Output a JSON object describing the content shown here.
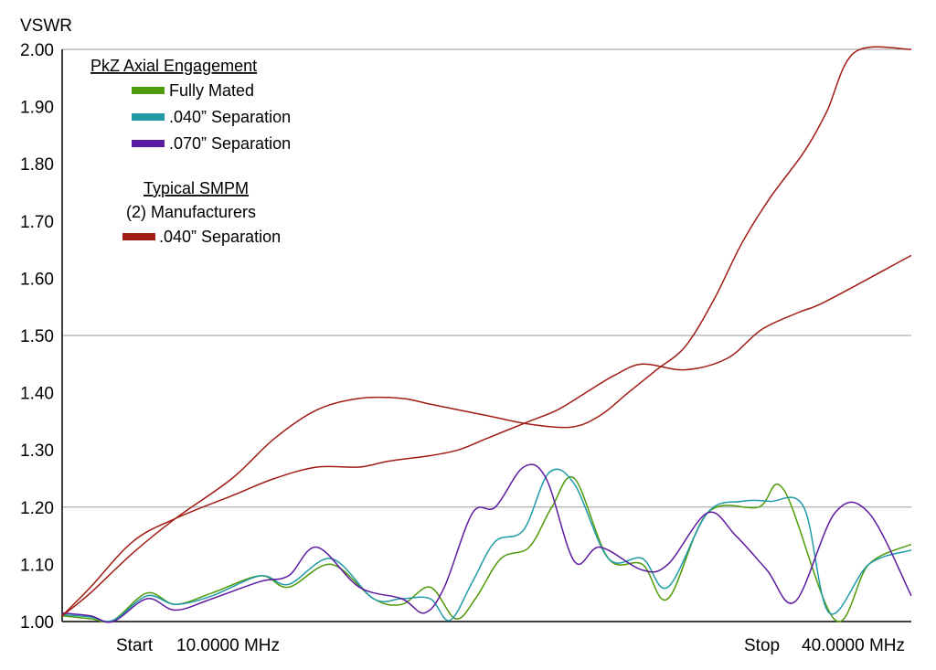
{
  "chart_data": {
    "type": "line",
    "y_axis_title": "VSWR",
    "y_ticks": [
      "2.00",
      "1.90",
      "1.80",
      "1.70",
      "1.60",
      "1.50",
      "1.40",
      "1.30",
      "1.20",
      "1.10",
      "1.00"
    ],
    "ylim": [
      1.0,
      2.0
    ],
    "xlim": [
      10,
      40
    ],
    "x_unit": "MHz",
    "grid_lines_at": [
      1.2,
      1.5,
      2.0
    ],
    "start_label": "Start",
    "start_value": "10.0000 MHz",
    "stop_label": "Stop",
    "stop_value": "40.0000 MHz",
    "legend": {
      "group1_title": "PkZ Axial Engagement",
      "group2_title": "Typical SMPM",
      "group2_subtitle": "(2) Manufacturers"
    },
    "series": [
      {
        "name": "Fully Mated",
        "color": "#4e9a06",
        "x": [
          10.0,
          11.0,
          11.8,
          13.0,
          14.0,
          15.3,
          17.0,
          18.0,
          19.5,
          21.0,
          22.0,
          23.0,
          23.9,
          24.6,
          25.5,
          26.5,
          27.3,
          28.1,
          29.3,
          30.5,
          31.4,
          32.8,
          34.6,
          35.5,
          37.3,
          38.5,
          40.0
        ],
        "y": [
          1.01,
          1.005,
          1.002,
          1.05,
          1.03,
          1.05,
          1.08,
          1.06,
          1.1,
          1.04,
          1.03,
          1.06,
          1.005,
          1.04,
          1.11,
          1.13,
          1.2,
          1.25,
          1.11,
          1.1,
          1.04,
          1.19,
          1.2,
          1.23,
          1.003,
          1.1,
          1.135
        ]
      },
      {
        "name": ".040” Separation",
        "color": "#1f9aa6",
        "x": [
          10.0,
          11.0,
          11.8,
          13.0,
          14.0,
          15.3,
          17.0,
          18.0,
          19.5,
          21.0,
          22.0,
          23.0,
          23.7,
          24.5,
          25.3,
          26.3,
          27.2,
          28.1,
          29.3,
          30.5,
          31.4,
          32.8,
          34.0,
          35.0,
          36.2,
          37.1,
          38.5,
          40.0
        ],
        "y": [
          1.012,
          1.008,
          1.002,
          1.045,
          1.03,
          1.045,
          1.08,
          1.065,
          1.11,
          1.04,
          1.04,
          1.04,
          1.002,
          1.07,
          1.14,
          1.16,
          1.26,
          1.24,
          1.11,
          1.11,
          1.06,
          1.19,
          1.21,
          1.21,
          1.2,
          1.015,
          1.1,
          1.125
        ]
      },
      {
        "name": ".070” Separation",
        "color": "#5b1aa0",
        "x": [
          10.0,
          11.0,
          11.8,
          13.0,
          14.0,
          15.3,
          17.0,
          18.0,
          19.0,
          20.5,
          22.0,
          22.8,
          23.5,
          24.5,
          25.3,
          26.3,
          27.1,
          28.1,
          29.0,
          30.5,
          31.4,
          32.8,
          33.8,
          34.9,
          35.9,
          37.3,
          38.5,
          40.0
        ],
        "y": [
          1.015,
          1.01,
          1.0,
          1.04,
          1.02,
          1.04,
          1.07,
          1.08,
          1.13,
          1.06,
          1.04,
          1.015,
          1.06,
          1.19,
          1.2,
          1.27,
          1.25,
          1.105,
          1.13,
          1.09,
          1.1,
          1.19,
          1.15,
          1.09,
          1.035,
          1.19,
          1.19,
          1.045
        ]
      },
      {
        "name": ".040” Separation",
        "color": "#a01c14",
        "x": [
          10.0,
          11.0,
          12.5,
          14.0,
          16.0,
          17.5,
          19.0,
          20.5,
          21.5,
          23.0,
          24.0,
          25.0,
          26.5,
          27.5,
          28.5,
          29.5,
          30.5,
          32.0,
          33.5,
          34.7,
          36.0,
          37.0,
          40.0
        ],
        "y": [
          1.01,
          1.06,
          1.14,
          1.18,
          1.22,
          1.25,
          1.27,
          1.27,
          1.28,
          1.29,
          1.3,
          1.32,
          1.35,
          1.37,
          1.4,
          1.43,
          1.45,
          1.44,
          1.46,
          1.51,
          1.54,
          1.56,
          1.64
        ]
      },
      {
        "name": ".040” Separation",
        "color": "#a01c14",
        "x": [
          10.0,
          11.0,
          12.5,
          14.0,
          16.0,
          17.5,
          19.0,
          20.5,
          22.0,
          23.0,
          25.0,
          26.5,
          28.0,
          29.0,
          30.0,
          31.0,
          32.0,
          33.0,
          34.0,
          35.0,
          36.2,
          37.0,
          38.0,
          40.0
        ],
        "y": [
          1.01,
          1.05,
          1.12,
          1.18,
          1.25,
          1.32,
          1.37,
          1.39,
          1.39,
          1.38,
          1.36,
          1.345,
          1.34,
          1.36,
          1.4,
          1.44,
          1.48,
          1.56,
          1.66,
          1.74,
          1.82,
          1.89,
          1.995,
          2.0
        ]
      }
    ]
  }
}
